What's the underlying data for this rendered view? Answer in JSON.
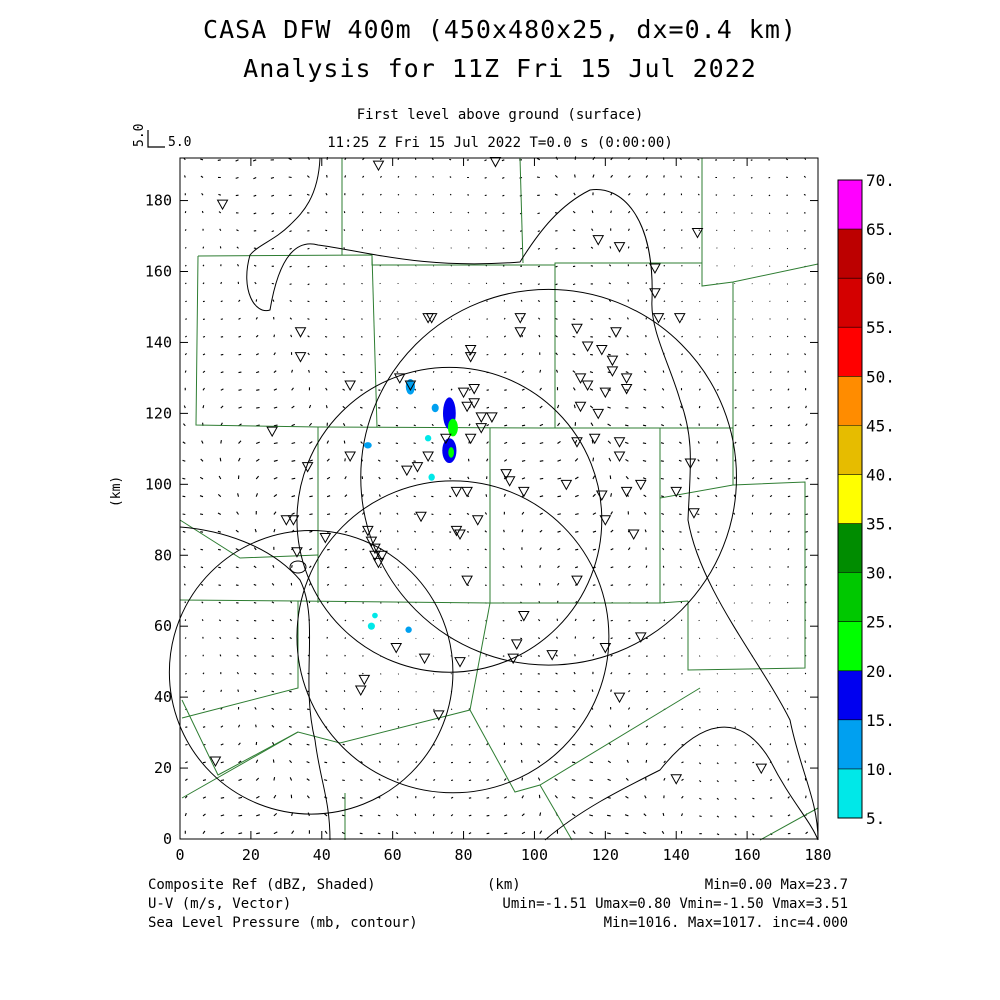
{
  "title_line1": "CASA DFW 400m (450x480x25, dx=0.4 km)",
  "title_line2": "Analysis for 11Z Fri 15 Jul 2022",
  "level_label": "First level above ground (surface)",
  "time_label": "11:25 Z Fri 15 Jul 2022    T=0.0 s (0:00:00)",
  "ref_vector": {
    "rotated_label": "5.0",
    "label": "5.0"
  },
  "footer": {
    "field1": "Composite Ref (dBZ, Shaded)",
    "field2": "U-V (m/s, Vector)",
    "field3": "Sea Level Pressure (mb, contour)",
    "xunit": "(km)",
    "stats1": "Min=0.00 Max=23.7",
    "stats2": "Umin=-1.51 Umax=0.80 Vmin=-1.50 Vmax=3.51",
    "stats3": "Min=1016. Max=1017. inc=4.000"
  },
  "chart_data": {
    "type": "heatmap",
    "xlabel": "",
    "ylabel": "(km)",
    "xlim": [
      0,
      180
    ],
    "ylim": [
      0,
      192
    ],
    "xticks": [
      "0",
      "20",
      "40",
      "60",
      "80",
      "100",
      "120",
      "140",
      "160",
      "180"
    ],
    "yticks": [
      "0",
      "20",
      "40",
      "60",
      "80",
      "100",
      "120",
      "140",
      "160",
      "180"
    ],
    "colorbar": {
      "labels": [
        "5.",
        "10.",
        "15.",
        "20.",
        "25.",
        "30.",
        "35.",
        "40.",
        "45.",
        "50.",
        "55.",
        "60.",
        "65.",
        "70."
      ],
      "colors": [
        "#00e8e8",
        "#00a0f0",
        "#0000f0",
        "#00ff00",
        "#00c800",
        "#008c00",
        "#ffff00",
        "#e6bc00",
        "#ff8c00",
        "#ff0000",
        "#d40000",
        "#bc0000",
        "#ff00ff"
      ]
    },
    "radar_rings": [
      {
        "cx": 104,
        "cy": 102,
        "r": 53
      },
      {
        "cx": 76,
        "cy": 90,
        "r": 43
      },
      {
        "cx": 37,
        "cy": 47,
        "r": 40
      },
      {
        "cx": 77,
        "cy": 57,
        "r": 44
      }
    ],
    "echoes": [
      {
        "x": 65,
        "y": 127.5,
        "rx": 1.3,
        "ry": 2.2,
        "dbz": 12
      },
      {
        "x": 76,
        "y": 120,
        "rx": 1.8,
        "ry": 4.5,
        "dbz": 17
      },
      {
        "x": 77,
        "y": 116,
        "rx": 1.4,
        "ry": 2.5,
        "dbz": 20
      },
      {
        "x": 76,
        "y": 109.5,
        "rx": 2.0,
        "ry": 3.5,
        "dbz": 17
      },
      {
        "x": 76.5,
        "y": 109,
        "rx": 0.8,
        "ry": 1.5,
        "dbz": 23.7
      },
      {
        "x": 72,
        "y": 121.5,
        "rx": 1.0,
        "ry": 1.2,
        "dbz": 12
      },
      {
        "x": 70,
        "y": 113,
        "rx": 0.9,
        "ry": 0.9,
        "dbz": 8
      },
      {
        "x": 53,
        "y": 111,
        "rx": 1.1,
        "ry": 0.9,
        "dbz": 12
      },
      {
        "x": 71,
        "y": 102,
        "rx": 0.9,
        "ry": 1.0,
        "dbz": 8
      },
      {
        "x": 54,
        "y": 60,
        "rx": 1.0,
        "ry": 1.0,
        "dbz": 8
      },
      {
        "x": 64.5,
        "y": 59,
        "rx": 0.9,
        "ry": 0.9,
        "dbz": 12
      },
      {
        "x": 55,
        "y": 63,
        "rx": 0.8,
        "ry": 0.8,
        "dbz": 8
      }
    ],
    "stations": [
      [
        12,
        179
      ],
      [
        89,
        191
      ],
      [
        56,
        190
      ],
      [
        118,
        169
      ],
      [
        124,
        167
      ],
      [
        146,
        171
      ],
      [
        134,
        161
      ],
      [
        134,
        154
      ],
      [
        135,
        147
      ],
      [
        141,
        147
      ],
      [
        70,
        147
      ],
      [
        71,
        147
      ],
      [
        34,
        143
      ],
      [
        34,
        136
      ],
      [
        96,
        147
      ],
      [
        112,
        144
      ],
      [
        82,
        138
      ],
      [
        82,
        136
      ],
      [
        96,
        143
      ],
      [
        123,
        143
      ],
      [
        115,
        139
      ],
      [
        119,
        138
      ],
      [
        122,
        135
      ],
      [
        122,
        132
      ],
      [
        126,
        130
      ],
      [
        126,
        127
      ],
      [
        113,
        130
      ],
      [
        115,
        128
      ],
      [
        120,
        126
      ],
      [
        48,
        128
      ],
      [
        62,
        130
      ],
      [
        65,
        128
      ],
      [
        80,
        126
      ],
      [
        83,
        127
      ],
      [
        83,
        123
      ],
      [
        81,
        122
      ],
      [
        85,
        119
      ],
      [
        88,
        119
      ],
      [
        113,
        122
      ],
      [
        118,
        120
      ],
      [
        112,
        112
      ],
      [
        117,
        113
      ],
      [
        124,
        112
      ],
      [
        124,
        108
      ],
      [
        144,
        106
      ],
      [
        26,
        115
      ],
      [
        36,
        105
      ],
      [
        48,
        108
      ],
      [
        64,
        104
      ],
      [
        67,
        105
      ],
      [
        70,
        108
      ],
      [
        75,
        113
      ],
      [
        82,
        113
      ],
      [
        85,
        116
      ],
      [
        92,
        103
      ],
      [
        93,
        101
      ],
      [
        97,
        98
      ],
      [
        109,
        100
      ],
      [
        119,
        97
      ],
      [
        126,
        98
      ],
      [
        130,
        100
      ],
      [
        140,
        98
      ],
      [
        145,
        92
      ],
      [
        78,
        98
      ],
      [
        81,
        98
      ],
      [
        68,
        91
      ],
      [
        79,
        86
      ],
      [
        78,
        87
      ],
      [
        84,
        90
      ],
      [
        30,
        90
      ],
      [
        32,
        90
      ],
      [
        33,
        81
      ],
      [
        41,
        85
      ],
      [
        53,
        87
      ],
      [
        54,
        84
      ],
      [
        57,
        80
      ],
      [
        56,
        78
      ],
      [
        55,
        82
      ],
      [
        120,
        90
      ],
      [
        128,
        86
      ],
      [
        112,
        73
      ],
      [
        81,
        73
      ],
      [
        55,
        80
      ],
      [
        61,
        54
      ],
      [
        69,
        51
      ],
      [
        79,
        50
      ],
      [
        97,
        63
      ],
      [
        95,
        55
      ],
      [
        94,
        51
      ],
      [
        105,
        52
      ],
      [
        120,
        54
      ],
      [
        130,
        57
      ],
      [
        124,
        40
      ],
      [
        52,
        45
      ],
      [
        51,
        42
      ],
      [
        73,
        35
      ],
      [
        10,
        22
      ],
      [
        140,
        17
      ],
      [
        164,
        20
      ]
    ]
  }
}
